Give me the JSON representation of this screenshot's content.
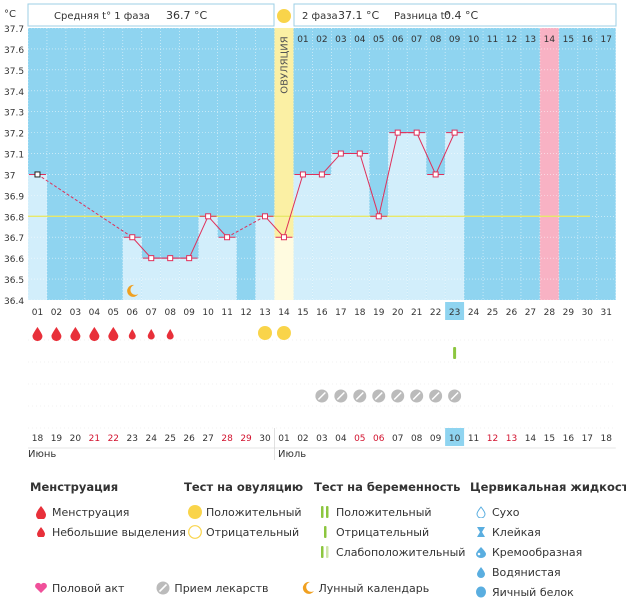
{
  "header": {
    "unit": "°C",
    "phase1_label": "Средняя t° 1 фаза",
    "phase1_value": "36.7 °C",
    "phase2_label": "2 фаза",
    "phase2_value": "37.1 °C",
    "diff_label": "Разница t°",
    "diff_value": "0.4 °C",
    "ovulation_label": "ОВУЛЯЦИЯ"
  },
  "chart_data": {
    "type": "line",
    "ylim": [
      36.4,
      37.7
    ],
    "y_ticks": [
      "36.4",
      "36.5",
      "36.6",
      "36.7",
      "36.8",
      "36.9",
      "37",
      "37.1",
      "37.2",
      "37.3",
      "37.4",
      "37.5",
      "37.6",
      "37.7"
    ],
    "cycle_days": [
      "01",
      "02",
      "03",
      "04",
      "05",
      "06",
      "07",
      "08",
      "09",
      "10",
      "11",
      "12",
      "13",
      "14",
      "15",
      "16",
      "17",
      "18",
      "19",
      "20",
      "21",
      "22",
      "23",
      "24",
      "25",
      "26",
      "27",
      "28",
      "29",
      "30",
      "31"
    ],
    "post_ovulation_days": [
      "01",
      "02",
      "03",
      "04",
      "05",
      "06",
      "07",
      "08",
      "09",
      "10",
      "11",
      "12",
      "13",
      "14",
      "15",
      "16",
      "17"
    ],
    "temperatures": [
      37.0,
      null,
      null,
      null,
      null,
      36.7,
      36.6,
      36.6,
      36.6,
      36.8,
      36.7,
      null,
      36.8,
      36.7,
      37.0,
      37.0,
      37.1,
      37.1,
      36.8,
      37.2,
      37.2,
      37.0,
      37.2,
      null,
      null,
      null,
      null,
      null,
      null,
      null,
      null
    ],
    "coverline": 36.8,
    "ovulation_day": "14",
    "highlighted_day": "28",
    "current_day": "23",
    "calendar_dates": [
      "18",
      "19",
      "20",
      "21",
      "22",
      "23",
      "24",
      "25",
      "26",
      "27",
      "28",
      "29",
      "30",
      "01",
      "02",
      "03",
      "04",
      "05",
      "06",
      "07",
      "08",
      "09",
      "10",
      "11",
      "12",
      "13",
      "14",
      "15",
      "16",
      "17",
      "18"
    ],
    "weekend_dates": [
      "21",
      "22",
      "28",
      "29",
      "05",
      "06",
      "12",
      "13"
    ],
    "today_date": "10",
    "month_june": "Июнь",
    "month_july": "Июль",
    "menstruation": [
      "big",
      "big",
      "big",
      "big",
      "big",
      "small",
      "small",
      "small"
    ],
    "ovulation_test_positive_days": [
      "13",
      "14"
    ],
    "pregnancy_test_day": "23",
    "medication_days": [
      "16",
      "17",
      "18",
      "19",
      "20",
      "21",
      "22",
      "23"
    ],
    "moon_day": "06"
  },
  "legend": {
    "menstruation_title": "Менструация",
    "menstruation_items": [
      "Менструация",
      "Небольшие выделения"
    ],
    "ovulation_title": "Тест на овуляцию",
    "ovulation_items": [
      "Положительный",
      "Отрицательный"
    ],
    "pregnancy_title": "Тест на беременность",
    "pregnancy_items": [
      "Положительный",
      "Отрицательный",
      "Слабоположительный"
    ],
    "cervical_title": "Цервикальная жидкость",
    "cervical_items": [
      "Сухо",
      "Клейкая",
      "Кремообразная",
      "Водянистая",
      "Яичный белок"
    ],
    "bottom_items": [
      "Половой акт",
      "Прием лекарств",
      "Лунный календарь"
    ]
  },
  "colors": {
    "background": "#8fd4f0",
    "bar": "#d2eefb",
    "line": "#e0305a",
    "coverline": "#e8e86a",
    "ovulation": "#fbf0a4",
    "highlight": "#f8b2c4",
    "menstruation": "#e8303a",
    "ovulation_test": "#f9d44a",
    "pregnancy_test": "#8cc63f",
    "medication": "#bbbbbb",
    "moon": "#f0a020",
    "weekend": "#d2122e",
    "heart": "#f0509a",
    "cervical": "#5aaee0"
  }
}
